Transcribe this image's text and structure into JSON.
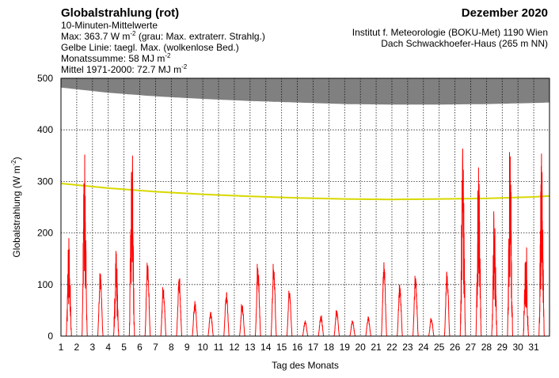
{
  "header": {
    "title": "Globalstrahlung (rot)",
    "line2": "10-Minuten-Mittelwerte",
    "max_prefix": "Max:  363.7 W m",
    "max_exp": "-2",
    "max_suffix": "  (grau: Max. extraterr. Strahlg.)",
    "yellow_line": "Gelbe Linie: taegl. Max. (wolkenlose Bed.)",
    "monthly_prefix": "Monatssumme:   58 MJ m",
    "monthly_exp": "-2",
    "mean_prefix": "Mittel 1971-2000:   72.7 MJ m",
    "mean_exp": "-2",
    "month": "Dezember 2020",
    "institute_line1": "Institut f. Meteorologie (BOKU-Met) 1190 Wien",
    "institute_line2": "Dach Schwackhoefer-Haus (265 m NN)"
  },
  "chart_data": {
    "type": "line",
    "xlabel": "Tag des Monats",
    "ylabel_prefix": "Globalstrahlung (W m",
    "ylabel_exp": "-2",
    "ylabel_suffix": ")",
    "xlim": [
      1,
      32
    ],
    "ylim": [
      0,
      500
    ],
    "x_ticks": [
      "1",
      "2",
      "3",
      "4",
      "5",
      "6",
      "7",
      "8",
      "9",
      "10",
      "11",
      "12",
      "13",
      "14",
      "15",
      "16",
      "17",
      "18",
      "19",
      "20",
      "21",
      "22",
      "23",
      "24",
      "25",
      "26",
      "27",
      "28",
      "29",
      "30",
      "31"
    ],
    "y_ticks": [
      0,
      100,
      200,
      300,
      400,
      500
    ],
    "grid": true,
    "colors": {
      "global_radiation": "#ff0000",
      "clear_sky_max": "#d8d800",
      "extraterrestrial_max": "#808080",
      "grid": "#000000"
    },
    "series": [
      {
        "key": "global_radiation",
        "style": "red line",
        "daily_peak_values": [
          190,
          352,
          122,
          165,
          350,
          142,
          95,
          112,
          68,
          47,
          85,
          62,
          140,
          140,
          88,
          30,
          40,
          50,
          30,
          38,
          143,
          100,
          117,
          35,
          125,
          363.7,
          327,
          242,
          357,
          172,
          354
        ],
        "noon_offset": 0.5
      },
      {
        "key": "clear_sky_max",
        "style": "yellow line",
        "x": [
          1,
          4,
          7,
          10,
          13,
          16,
          19,
          22,
          25,
          28,
          31,
          32
        ],
        "y": [
          296,
          287,
          280,
          275,
          271,
          268,
          266,
          265,
          266,
          267,
          270,
          272
        ]
      },
      {
        "key": "extraterrestrial_max",
        "style": "gray fill",
        "x": [
          1,
          4,
          7,
          10,
          13,
          16,
          19,
          22,
          25,
          28,
          31,
          32
        ],
        "y": [
          482,
          472,
          465,
          460,
          456,
          453,
          450,
          449,
          449,
          450,
          452,
          453
        ]
      }
    ]
  }
}
